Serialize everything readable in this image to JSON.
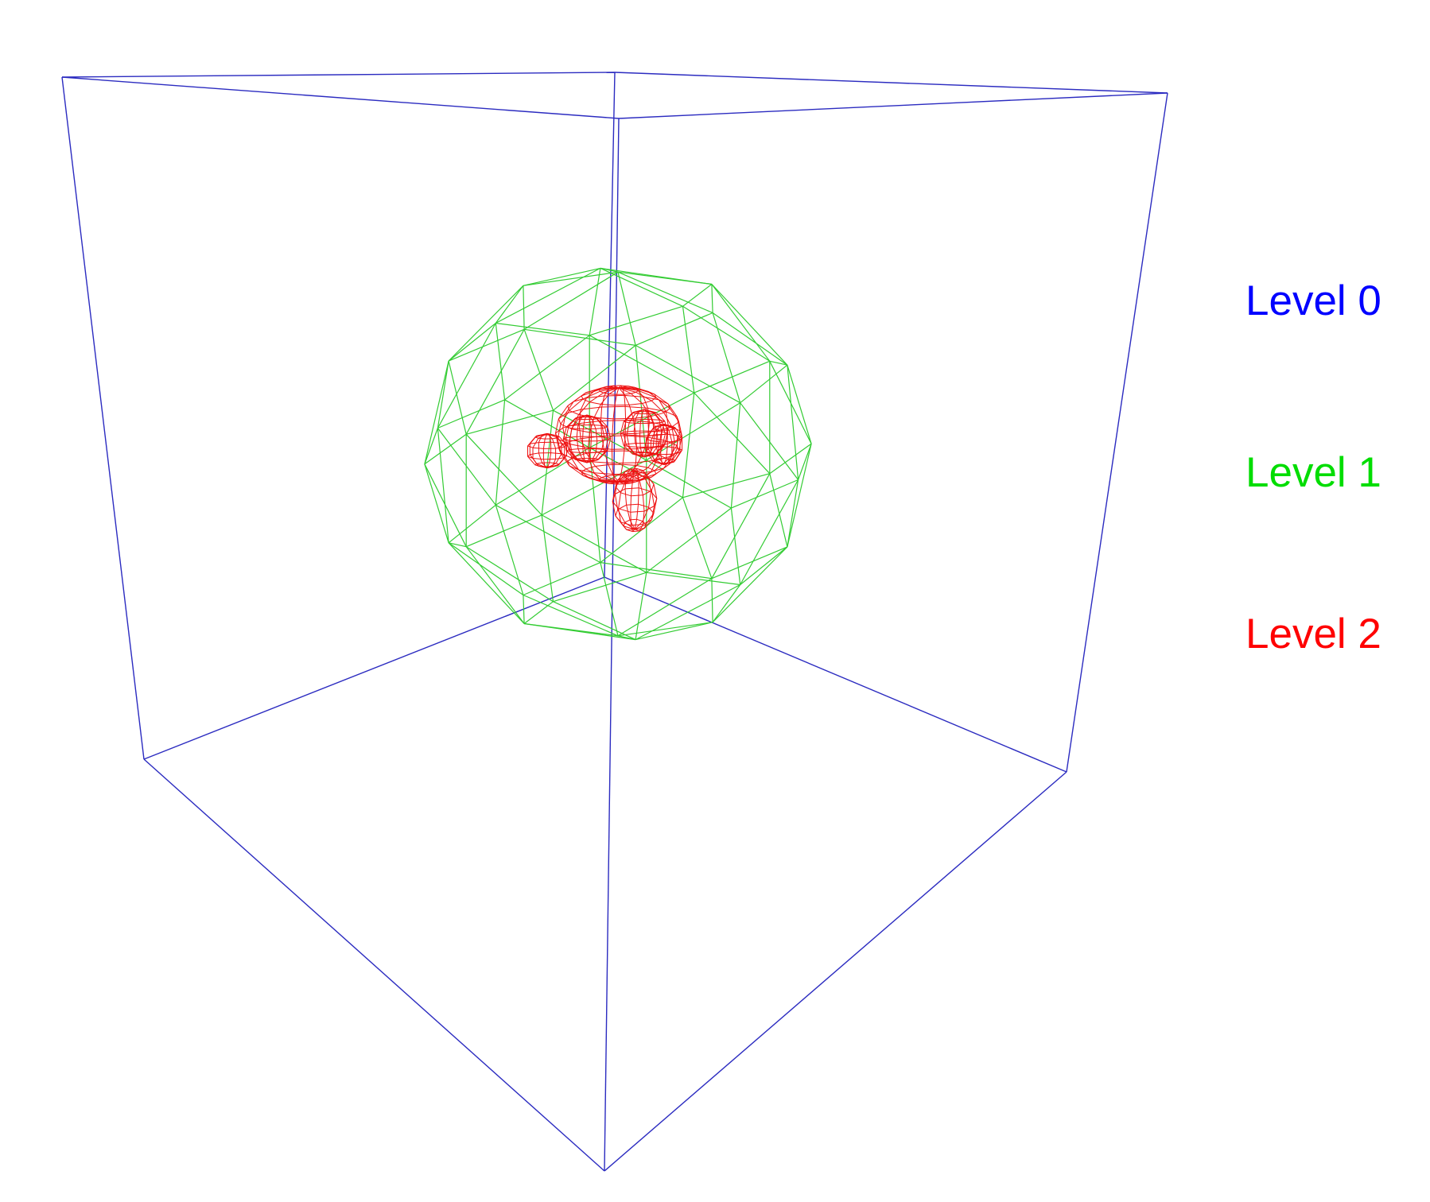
{
  "legend": [
    {
      "label": "Level 0",
      "color": "#0000ff"
    },
    {
      "label": "Level 1",
      "color": "#00dd00"
    },
    {
      "label": "Level 2",
      "color": "#ff0000"
    }
  ],
  "shapes": {
    "level0": {
      "shape": "cube",
      "color": "#2b2bc0"
    },
    "level1": {
      "shape": "icosphere",
      "color": "#33cc33"
    },
    "level2": {
      "shape": "monkey head mesh",
      "color": "#ee1111"
    }
  }
}
